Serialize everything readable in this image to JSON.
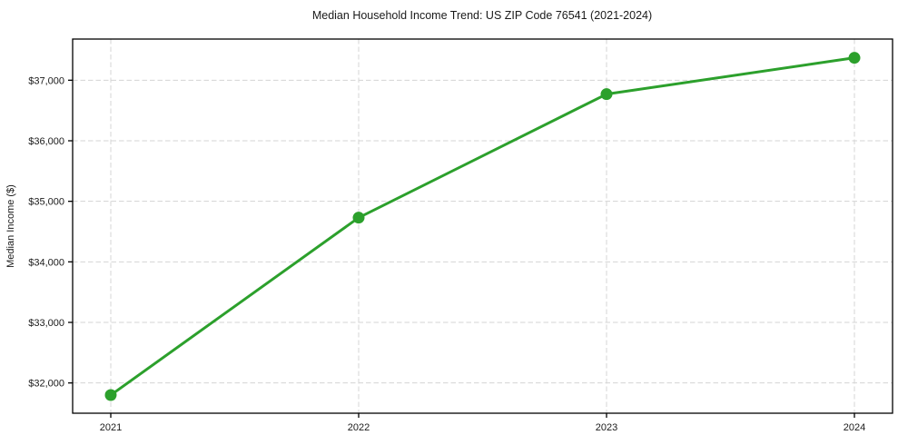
{
  "figure": {
    "background": "#ffffff"
  },
  "chart_data": {
    "type": "line",
    "title": "Median Household Income Trend: US ZIP Code 76541 (2021-2024)",
    "xlabel": "",
    "ylabel": "Median Income ($)",
    "categories": [
      "2021",
      "2022",
      "2023",
      "2024"
    ],
    "values": [
      31800,
      34730,
      36770,
      37370
    ],
    "ylim": [
      31500,
      37680
    ],
    "yticks": [
      32000,
      33000,
      34000,
      35000,
      36000,
      37000
    ],
    "ytick_labels": [
      "$32,000",
      "$33,000",
      "$34,000",
      "$35,000",
      "$36,000",
      "$37,000"
    ],
    "grid": true,
    "grid_color": "#d4d4d4",
    "grid_style": "dashed",
    "legend_position": "none",
    "line_color": "#2ca02c",
    "line_width": 3,
    "marker": "circle",
    "marker_radius": 6.5,
    "axis_color": "#000000",
    "text_color": "#1a1a1a"
  }
}
